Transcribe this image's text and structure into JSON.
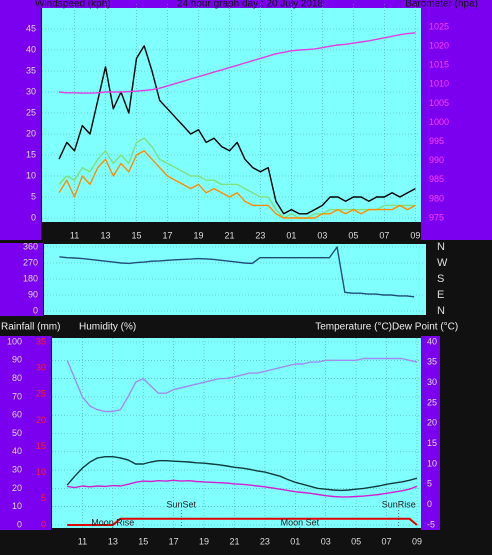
{
  "chart_data": [
    {
      "type": "line",
      "title": "24 hour graph day : 20 July 2018",
      "y_label": "Windspeed (kph)",
      "y2_label": "Barometer (hpa)",
      "x": [
        0,
        0.5,
        1,
        1.5,
        2,
        2.5,
        3,
        3.5,
        4,
        4.5,
        5,
        5.5,
        6,
        6.5,
        7,
        7.5,
        8,
        8.5,
        9,
        9.5,
        10,
        10.5,
        11,
        11.5,
        12,
        12.5,
        13,
        13.5,
        14,
        14.5,
        15,
        15.5,
        16,
        16.5,
        17,
        17.5,
        18,
        18.5,
        19,
        19.5,
        20,
        20.5,
        21,
        21.5,
        22,
        22.5,
        23
      ],
      "xlim": [
        -1.1,
        23.3
      ],
      "xticks": [
        {
          "value": 1,
          "label": "11"
        },
        {
          "value": 3,
          "label": "13"
        },
        {
          "value": 5,
          "label": "15"
        },
        {
          "value": 7,
          "label": "17"
        },
        {
          "value": 9,
          "label": "19"
        },
        {
          "value": 11,
          "label": "21"
        },
        {
          "value": 13,
          "label": "23"
        },
        {
          "value": 15,
          "label": "01"
        },
        {
          "value": 17,
          "label": "03"
        },
        {
          "value": 19,
          "label": "05"
        },
        {
          "value": 21,
          "label": "07"
        },
        {
          "value": 23,
          "label": "09"
        }
      ],
      "ylim": [
        0,
        50
      ],
      "yticks": [
        0,
        5,
        10,
        15,
        20,
        25,
        30,
        35,
        40,
        45
      ],
      "y2lim": [
        975,
        1030
      ],
      "y2ticks": [
        975,
        980,
        985,
        990,
        995,
        1000,
        1005,
        1010,
        1015,
        1020,
        1025
      ],
      "grid": true,
      "series": [
        {
          "color": "#000000",
          "values": [
            14,
            18,
            16,
            22,
            20,
            28,
            36,
            26,
            30,
            25,
            38,
            41,
            35,
            28,
            26,
            24,
            22,
            20,
            21,
            18,
            19,
            17,
            16,
            18,
            14,
            12,
            11,
            12,
            4,
            1,
            2,
            1,
            1,
            2,
            3,
            5,
            5,
            4,
            5,
            5,
            4,
            5,
            5,
            6,
            5,
            6,
            7
          ]
        },
        {
          "color": "#7ee07e",
          "values": [
            8,
            10,
            9,
            12,
            11,
            14,
            16,
            13,
            15,
            13,
            18,
            19,
            17,
            14,
            13,
            12,
            11,
            10,
            10,
            9,
            9,
            8,
            8,
            8,
            7,
            6,
            5,
            5,
            2,
            0,
            1,
            0,
            0,
            1,
            1,
            2,
            2,
            2,
            2,
            2,
            2,
            2,
            3,
            3,
            3,
            3,
            3
          ]
        },
        {
          "color": "#ff8c00",
          "values": [
            6,
            9,
            5,
            10,
            8,
            12,
            14,
            10,
            13,
            11,
            15,
            16,
            14,
            12,
            10,
            9,
            8,
            7,
            8,
            6,
            7,
            6,
            5,
            6,
            4,
            3,
            3,
            3,
            1,
            0,
            0,
            0,
            0,
            0,
            1,
            1,
            2,
            1,
            2,
            1,
            2,
            2,
            2,
            2,
            3,
            2,
            3
          ]
        },
        {
          "color": "#e040e0",
          "axis": "y2",
          "values": [
            1008,
            1007.8,
            1007.8,
            1007.7,
            1007.7,
            1007.8,
            1008,
            1008,
            1008,
            1008.1,
            1008.2,
            1008.4,
            1008.6,
            1009,
            1009.6,
            1010.2,
            1010.8,
            1011.4,
            1012,
            1012.6,
            1013.2,
            1013.8,
            1014.4,
            1015,
            1015.6,
            1016.2,
            1016.8,
            1017.4,
            1018,
            1018.4,
            1018.8,
            1019,
            1019.1,
            1019.3,
            1019.6,
            1020,
            1020.3,
            1020.5,
            1020.8,
            1021.1,
            1021.4,
            1021.8,
            1022.2,
            1022.6,
            1023,
            1023.3,
            1023.5
          ]
        }
      ]
    },
    {
      "type": "line",
      "x": [
        0,
        0.5,
        1,
        1.5,
        2,
        2.5,
        3,
        3.5,
        4,
        4.5,
        5,
        5.5,
        6,
        6.5,
        7,
        7.5,
        8,
        8.5,
        9,
        9.5,
        10,
        10.5,
        11,
        11.5,
        12,
        12.5,
        13,
        13.5,
        14,
        14.5,
        15,
        15.5,
        16,
        16.5,
        17,
        17.5,
        18,
        18.5,
        19,
        19.5,
        20,
        20.5,
        21,
        21.5,
        22,
        22.5,
        23
      ],
      "xlim": [
        -1.0,
        23.7
      ],
      "ylim": [
        0,
        360
      ],
      "yticks": [
        0,
        90,
        180,
        270,
        360
      ],
      "y2lim": [
        0,
        360
      ],
      "y2ticks": [
        {
          "value": 360,
          "label": "N"
        },
        {
          "value": 270,
          "label": "W"
        },
        {
          "value": 180,
          "label": "S"
        },
        {
          "value": 90,
          "label": "E"
        },
        {
          "value": 0,
          "label": "N"
        }
      ],
      "grid": true,
      "series": [
        {
          "color": "#1f4e79",
          "values": [
            305,
            300,
            298,
            295,
            290,
            285,
            280,
            275,
            270,
            268,
            272,
            275,
            280,
            282,
            285,
            288,
            290,
            292,
            295,
            293,
            290,
            285,
            280,
            275,
            270,
            268,
            300,
            300,
            300,
            300,
            300,
            300,
            300,
            300,
            300,
            300,
            360,
            105,
            100,
            100,
            95,
            95,
            90,
            90,
            85,
            85,
            80
          ]
        }
      ]
    },
    {
      "type": "line",
      "rain_label": "Rainfall (mm)",
      "y_label": "Humidity (%)",
      "y2_label": "Temperature (°C)",
      "y3_label": "Dew Point (°C)",
      "x": [
        0,
        0.5,
        1,
        1.5,
        2,
        2.5,
        3,
        3.5,
        4,
        4.5,
        5,
        5.5,
        6,
        6.5,
        7,
        7.5,
        8,
        8.5,
        9,
        9.5,
        10,
        10.5,
        11,
        11.5,
        12,
        12.5,
        13,
        13.5,
        14,
        14.5,
        15,
        15.5,
        16,
        16.5,
        17,
        17.5,
        18,
        18.5,
        19,
        19.5,
        20,
        20.5,
        21,
        21.5,
        22,
        22.5,
        23
      ],
      "xlim": [
        -1,
        23.2
      ],
      "xticks": [
        {
          "value": 1,
          "label": "11"
        },
        {
          "value": 3,
          "label": "13"
        },
        {
          "value": 5,
          "label": "15"
        },
        {
          "value": 7,
          "label": "17"
        },
        {
          "value": 9,
          "label": "19"
        },
        {
          "value": 11,
          "label": "21"
        },
        {
          "value": 13,
          "label": "23"
        },
        {
          "value": 15,
          "label": "01"
        },
        {
          "value": 17,
          "label": "03"
        },
        {
          "value": 19,
          "label": "05"
        },
        {
          "value": 21,
          "label": "07"
        },
        {
          "value": 23,
          "label": "09"
        }
      ],
      "ylim": [
        0,
        100
      ],
      "yticks": [
        0,
        10,
        20,
        30,
        40,
        50,
        60,
        70,
        80,
        90,
        100
      ],
      "rain_ylim": [
        0,
        35
      ],
      "rain_yticks": [
        0,
        5,
        10,
        15,
        20,
        25,
        30,
        35
      ],
      "y2lim": [
        -5,
        40
      ],
      "y2ticks": [
        -5,
        0,
        5,
        10,
        15,
        20,
        25,
        30,
        35,
        40
      ],
      "grid": true,
      "series": [
        {
          "color": "#a08cf0",
          "values": [
            90,
            80,
            70,
            65,
            63,
            62,
            62,
            63,
            70,
            78,
            80,
            76,
            72,
            72,
            74,
            75,
            76,
            77,
            78,
            79,
            80,
            80,
            81,
            82,
            83,
            83,
            84,
            85,
            86,
            87,
            88,
            88,
            89,
            89,
            90,
            90,
            90,
            90,
            90,
            91,
            91,
            91,
            91,
            91,
            91,
            90,
            89
          ]
        },
        {
          "color": "#0f3c3c",
          "axis": "y2",
          "values": [
            4.8,
            7,
            9,
            10.5,
            11.5,
            11.8,
            11.8,
            11.5,
            11,
            10,
            10,
            10.5,
            10.8,
            10.8,
            10.7,
            10.6,
            10.5,
            10.3,
            10.2,
            10,
            9.8,
            9.5,
            9.2,
            9,
            8.7,
            8.3,
            8,
            7.5,
            7,
            6.2,
            5.5,
            5,
            4.5,
            4,
            3.8,
            3.6,
            3.5,
            3.6,
            3.8,
            4,
            4.3,
            4.6,
            5,
            5.3,
            5.6,
            6,
            6.5
          ]
        },
        {
          "color": "#d020d0",
          "axis": "y2",
          "values": [
            4.5,
            4.2,
            4.6,
            4.4,
            4.6,
            4.5,
            4.7,
            4.6,
            5,
            5.5,
            5.8,
            5.7,
            5.9,
            5.8,
            6,
            5.8,
            5.9,
            5.7,
            5.6,
            5.5,
            5.4,
            5.3,
            5.1,
            5,
            4.8,
            4.6,
            4.4,
            4.1,
            3.8,
            3.5,
            3.2,
            3,
            2.8,
            2.5,
            2.2,
            2,
            1.9,
            1.9,
            2,
            2.1,
            2.3,
            2.5,
            2.8,
            3.1,
            3.4,
            3.8,
            4.5
          ]
        },
        {
          "color": "#e00000",
          "axis": "rain",
          "values": [
            0,
            0,
            0,
            0,
            0,
            0,
            0,
            1.2,
            1.2,
            1.2,
            1.2,
            1.2,
            1.2,
            1.2,
            1.2,
            1.2,
            1.2,
            1.2,
            1.2,
            1.2,
            1.2,
            1.2,
            1.2,
            1.2,
            1.2,
            1.2,
            1.2,
            1.2,
            1.2,
            1.2,
            1.2,
            1.2,
            1.2,
            1.2,
            1.2,
            1.2,
            1.2,
            1.2,
            1.2,
            1.2,
            1.2,
            1.2,
            1.2,
            1.2,
            1.2,
            1.2,
            0
          ]
        }
      ],
      "annotations": [
        {
          "text": "Moon Rise",
          "x": 3
        },
        {
          "text": "SunSet",
          "x": 7.5
        },
        {
          "text": "Moon Set",
          "x": 15.3
        },
        {
          "text": "SunRise",
          "x": 21.8
        }
      ]
    }
  ]
}
